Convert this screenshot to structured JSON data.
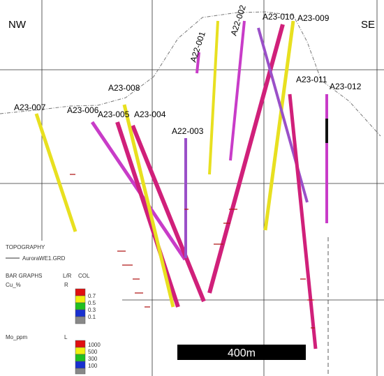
{
  "direction_labels": {
    "left": "NW",
    "right": "SE"
  },
  "holes": [
    "A23-007",
    "A23-006",
    "A23-005",
    "A23-004",
    "A23-008",
    "A22-003",
    "A22-001",
    "A22-002",
    "A23-010",
    "A23-009",
    "A23-011",
    "A23-012"
  ],
  "legend": {
    "topography": {
      "title": "TOPOGRAPHY",
      "file": "AuroraWE1.GRD"
    },
    "bar_graphs": {
      "title": "BAR GRAPHS",
      "side_header": "L/R",
      "color_header": "COL",
      "cu": {
        "name": "Cu_%",
        "side": "R",
        "levels": [
          "0.7",
          "0.5",
          "0.3",
          "0.1"
        ]
      },
      "mo": {
        "name": "Mo_ppm",
        "side": "L",
        "levels": [
          "1000",
          "500",
          "300",
          "100"
        ]
      }
    }
  },
  "scale_bar": "400m"
}
